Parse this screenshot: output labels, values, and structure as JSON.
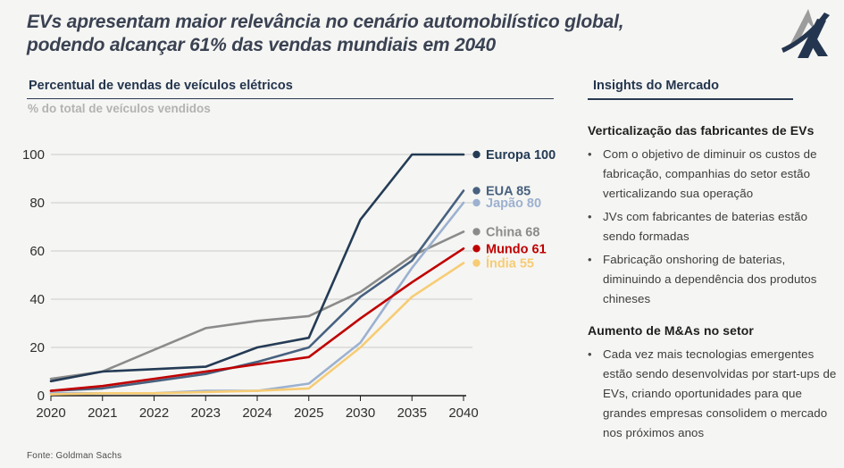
{
  "slide": {
    "title_line1": "EVs apresentam maior relevância no cenário automobilístico global,",
    "title_line2": "podendo alcançar 61% das vendas mundiais em 2040",
    "footer": "Fonte: Goldman Sachs",
    "accent_color": "#2b3a52",
    "background_color": "#f5f5f3"
  },
  "left_section": {
    "header": "Percentual de vendas de veículos elétricos",
    "subtitle": "% do total de veículos vendidos"
  },
  "insights": {
    "header": "Insights do Mercado",
    "sections": [
      {
        "heading": "Verticalização das fabricantes de EVs",
        "bullets": [
          "Com o objetivo de diminuir os custos de fabricação, companhias do setor estão verticalizando sua operação",
          "JVs com fabricantes de baterias estão sendo formadas",
          "Fabricação onshoring de baterias, diminuindo a dependência dos produtos chineses"
        ]
      },
      {
        "heading": "Aumento de M&As no setor",
        "bullets": [
          "Cada vez mais tecnologias emergentes estão sendo desenvolvidas por start-ups de EVs, criando oportunidades para que grandes empresas consolidem o mercado nos próximos anos"
        ]
      }
    ]
  },
  "chart_data": {
    "type": "line",
    "title": "Percentual de vendas de veículos elétricos",
    "ylabel": "% do total de veículos vendidos",
    "categories": [
      "2020",
      "2021",
      "2022",
      "2023",
      "2024",
      "2025",
      "2030",
      "2035",
      "2040"
    ],
    "ylim": [
      0,
      100
    ],
    "yticks": [
      0,
      20,
      40,
      60,
      80,
      100
    ],
    "grid": true,
    "legend_position": "right-of-line-endpoints",
    "axis_color": "#1a1a1a",
    "grid_color": "#cbcbcb",
    "tick_label_color": "#2e2e2e",
    "series": [
      {
        "name": "Europa",
        "legend_label": "Europa 100",
        "color": "#243B55",
        "values": [
          6,
          10,
          11,
          12,
          20,
          24,
          73,
          100,
          100
        ]
      },
      {
        "name": "EUA",
        "legend_label": "EUA 85",
        "color": "#47617F",
        "values": [
          2,
          3,
          6,
          9,
          14,
          20,
          41,
          56,
          85
        ]
      },
      {
        "name": "Japão",
        "legend_label": "Japão 80",
        "color": "#9CB1D0",
        "values": [
          1,
          1,
          1,
          2,
          2,
          5,
          22,
          53,
          80
        ]
      },
      {
        "name": "China",
        "legend_label": "China 68",
        "color": "#8B8B8B",
        "values": [
          7,
          10,
          19,
          28,
          31,
          33,
          43,
          58,
          68
        ]
      },
      {
        "name": "Mundo",
        "legend_label": "Mundo 61",
        "color": "#C00000",
        "values": [
          2,
          4,
          7,
          10,
          13,
          16,
          32,
          47,
          61
        ]
      },
      {
        "name": "Índia",
        "legend_label": "Índia 55",
        "color": "#F7CC74",
        "values": [
          0.5,
          1,
          1,
          1.5,
          2,
          3,
          20,
          41,
          55
        ]
      }
    ]
  }
}
